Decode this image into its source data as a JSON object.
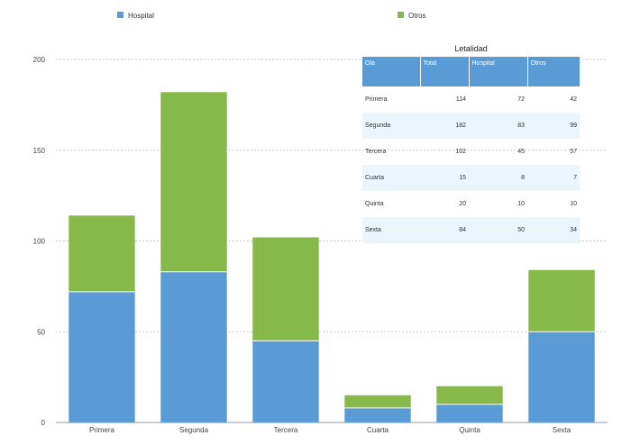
{
  "chart_data": {
    "type": "bar",
    "stacked": true,
    "categories": [
      "Primera",
      "Segunda",
      "Tercera",
      "Cuarta",
      "Quinta",
      "Sexta"
    ],
    "series": [
      {
        "name": "Hospital",
        "values": [
          72,
          83,
          45,
          8,
          10,
          50
        ],
        "color": "#5b9bd5"
      },
      {
        "name": "Otros",
        "values": [
          42,
          99,
          57,
          7,
          10,
          34
        ],
        "color": "#86b94a"
      }
    ],
    "ylim": [
      0,
      200
    ],
    "yticks": [
      0,
      50,
      100,
      150,
      200
    ],
    "grid": true,
    "legend": "top"
  },
  "table": {
    "title": "Letalidad",
    "headers": [
      "Ola",
      "Total",
      "Hospital",
      "Otros"
    ],
    "rows": [
      [
        "Primera",
        "114",
        "72",
        "42"
      ],
      [
        "Segunda",
        "182",
        "83",
        "99"
      ],
      [
        "Tercera",
        "102",
        "45",
        "57"
      ],
      [
        "Cuarta",
        "15",
        "8",
        "7"
      ],
      [
        "Quinta",
        "20",
        "10",
        "10"
      ],
      [
        "Sexta",
        "84",
        "50",
        "34"
      ]
    ],
    "header_color": "#5b9bd5",
    "stripe_color": "#eaf5fc"
  }
}
